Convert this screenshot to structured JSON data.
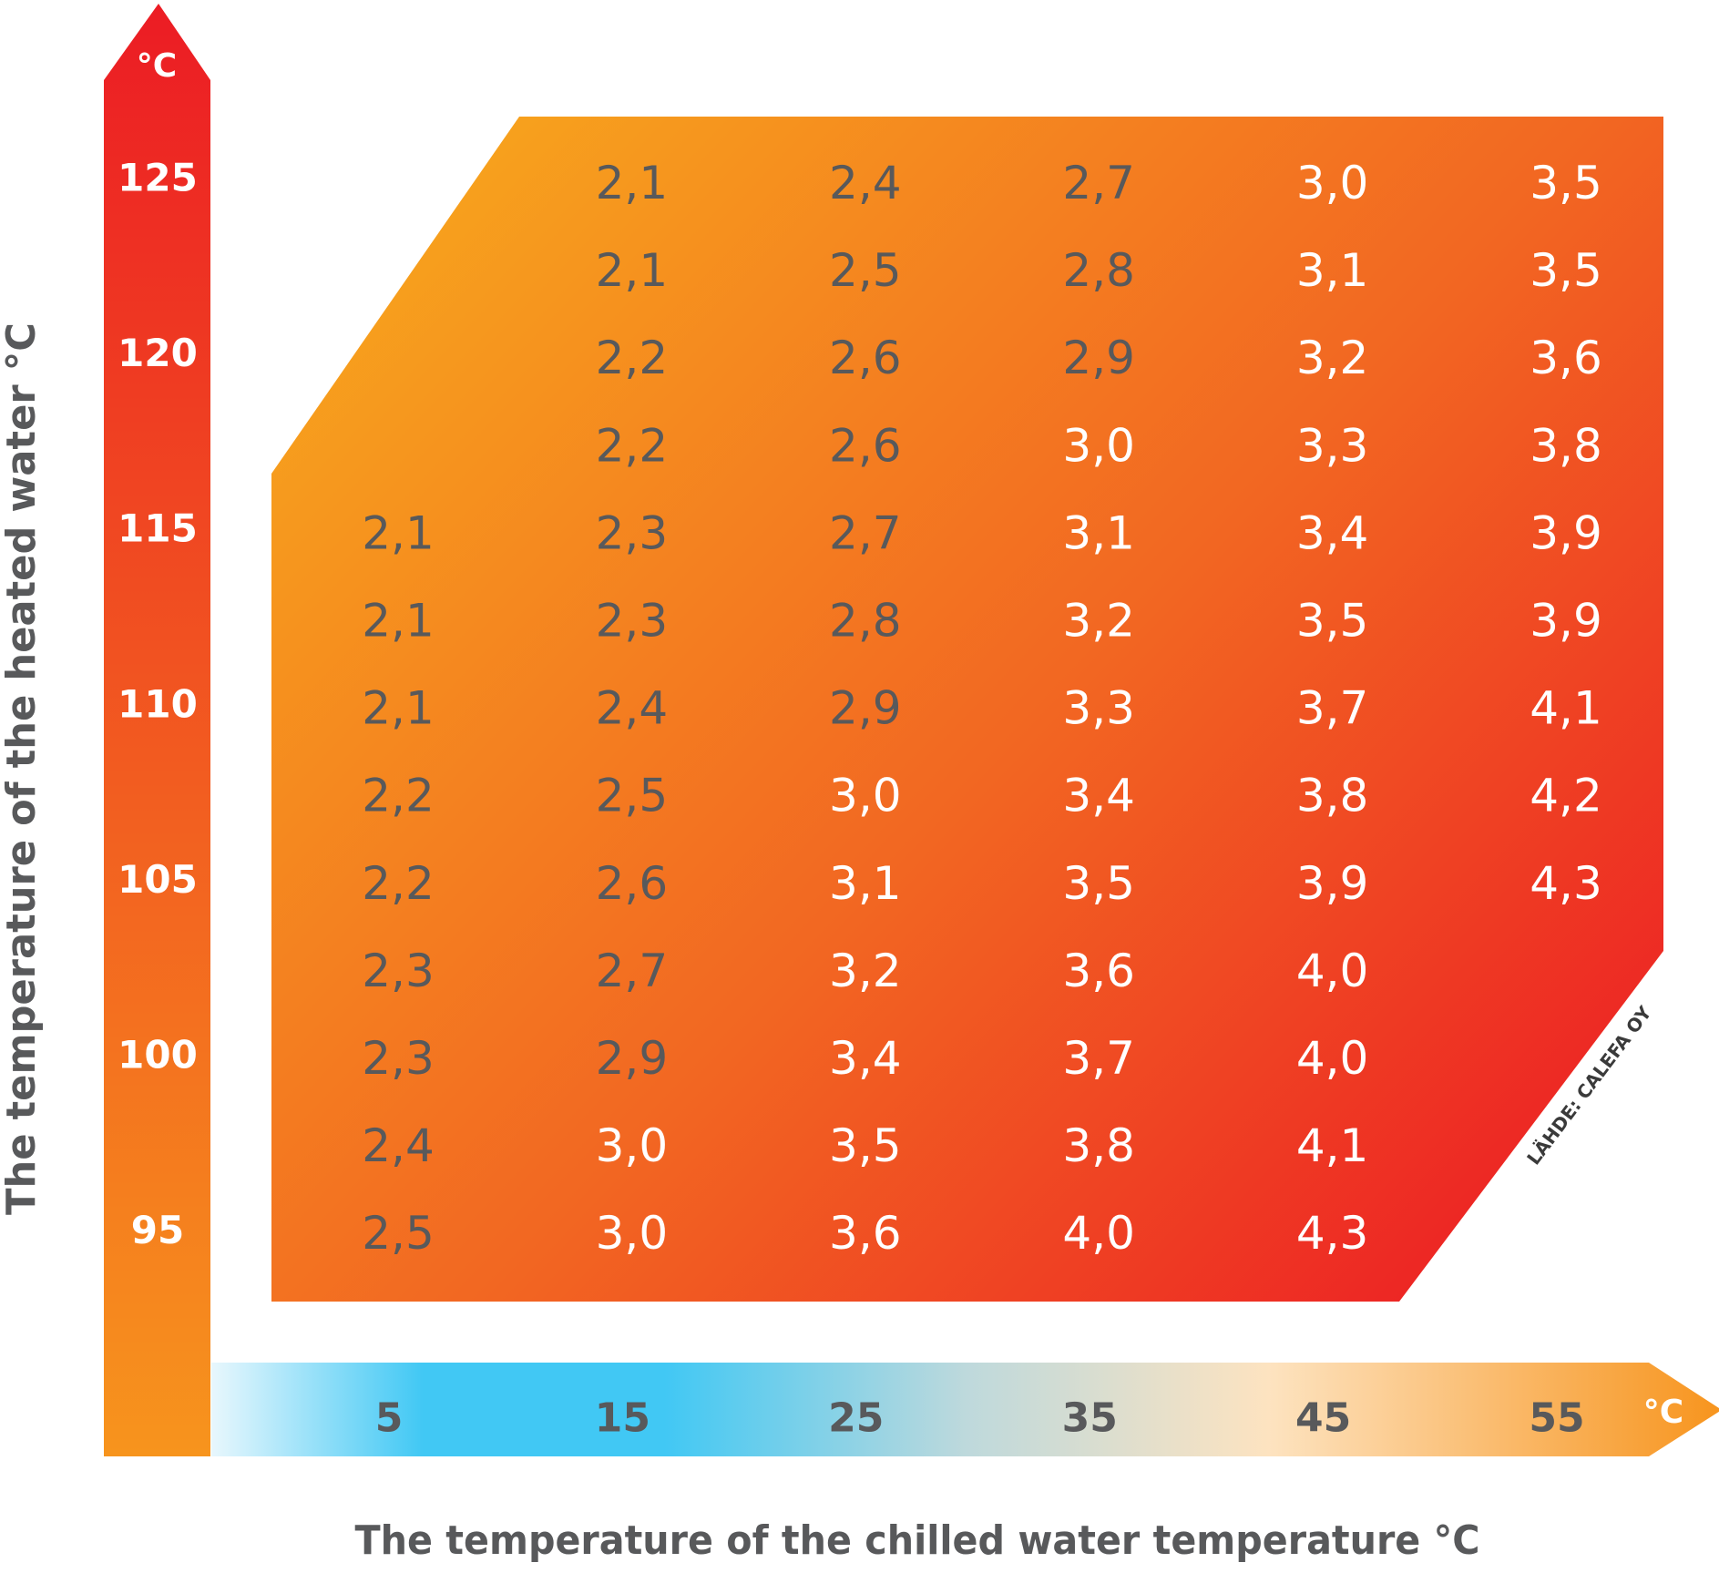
{
  "chart_data": {
    "type": "heatmap",
    "title": "",
    "xlabel": "The temperature of the chilled water temperature °C",
    "ylabel": "The temperature of the heated water °C",
    "x_unit": "°C",
    "y_unit": "°C",
    "x_categories": [
      "5",
      "15",
      "25",
      "35",
      "45",
      "55"
    ],
    "y_tick_labels": [
      "125",
      "120",
      "115",
      "110",
      "105",
      "100",
      "95"
    ],
    "y_range": [
      95,
      125
    ],
    "row_count": 13,
    "rows": [
      [
        null,
        "2,1",
        "2,4",
        "2,7",
        "3,0",
        "3,5"
      ],
      [
        null,
        "2,1",
        "2,5",
        "2,8",
        "3,1",
        "3,5"
      ],
      [
        null,
        "2,2",
        "2,6",
        "2,9",
        "3,2",
        "3,6"
      ],
      [
        null,
        "2,2",
        "2,6",
        "3,0",
        "3,3",
        "3,8"
      ],
      [
        "2,1",
        "2,3",
        "2,7",
        "3,1",
        "3,4",
        "3,9"
      ],
      [
        "2,1",
        "2,3",
        "2,8",
        "3,2",
        "3,5",
        "3,9"
      ],
      [
        "2,1",
        "2,4",
        "2,9",
        "3,3",
        "3,7",
        "4,1"
      ],
      [
        "2,2",
        "2,5",
        "3,0",
        "3,4",
        "3,8",
        "4,2"
      ],
      [
        "2,2",
        "2,6",
        "3,1",
        "3,5",
        "3,9",
        "4,3"
      ],
      [
        "2,3",
        "2,7",
        "3,2",
        "3,6",
        "4,0",
        null
      ],
      [
        "2,3",
        "2,9",
        "3,4",
        "3,7",
        "4,0",
        null
      ],
      [
        "2,4",
        "3,0",
        "3,5",
        "3,8",
        "4,1",
        null
      ],
      [
        "2,5",
        "3,0",
        "3,6",
        "4,0",
        "4,3",
        null
      ]
    ],
    "white_text_threshold": 3.0,
    "source_note": "LÄHDE: CALEFA OY",
    "colors": {
      "hot": "#ec1c24",
      "warm": "#f7941d",
      "cold": "#41c8f4",
      "dark_value_text": "#58595b",
      "light_value_text": "#ffffff"
    }
  }
}
